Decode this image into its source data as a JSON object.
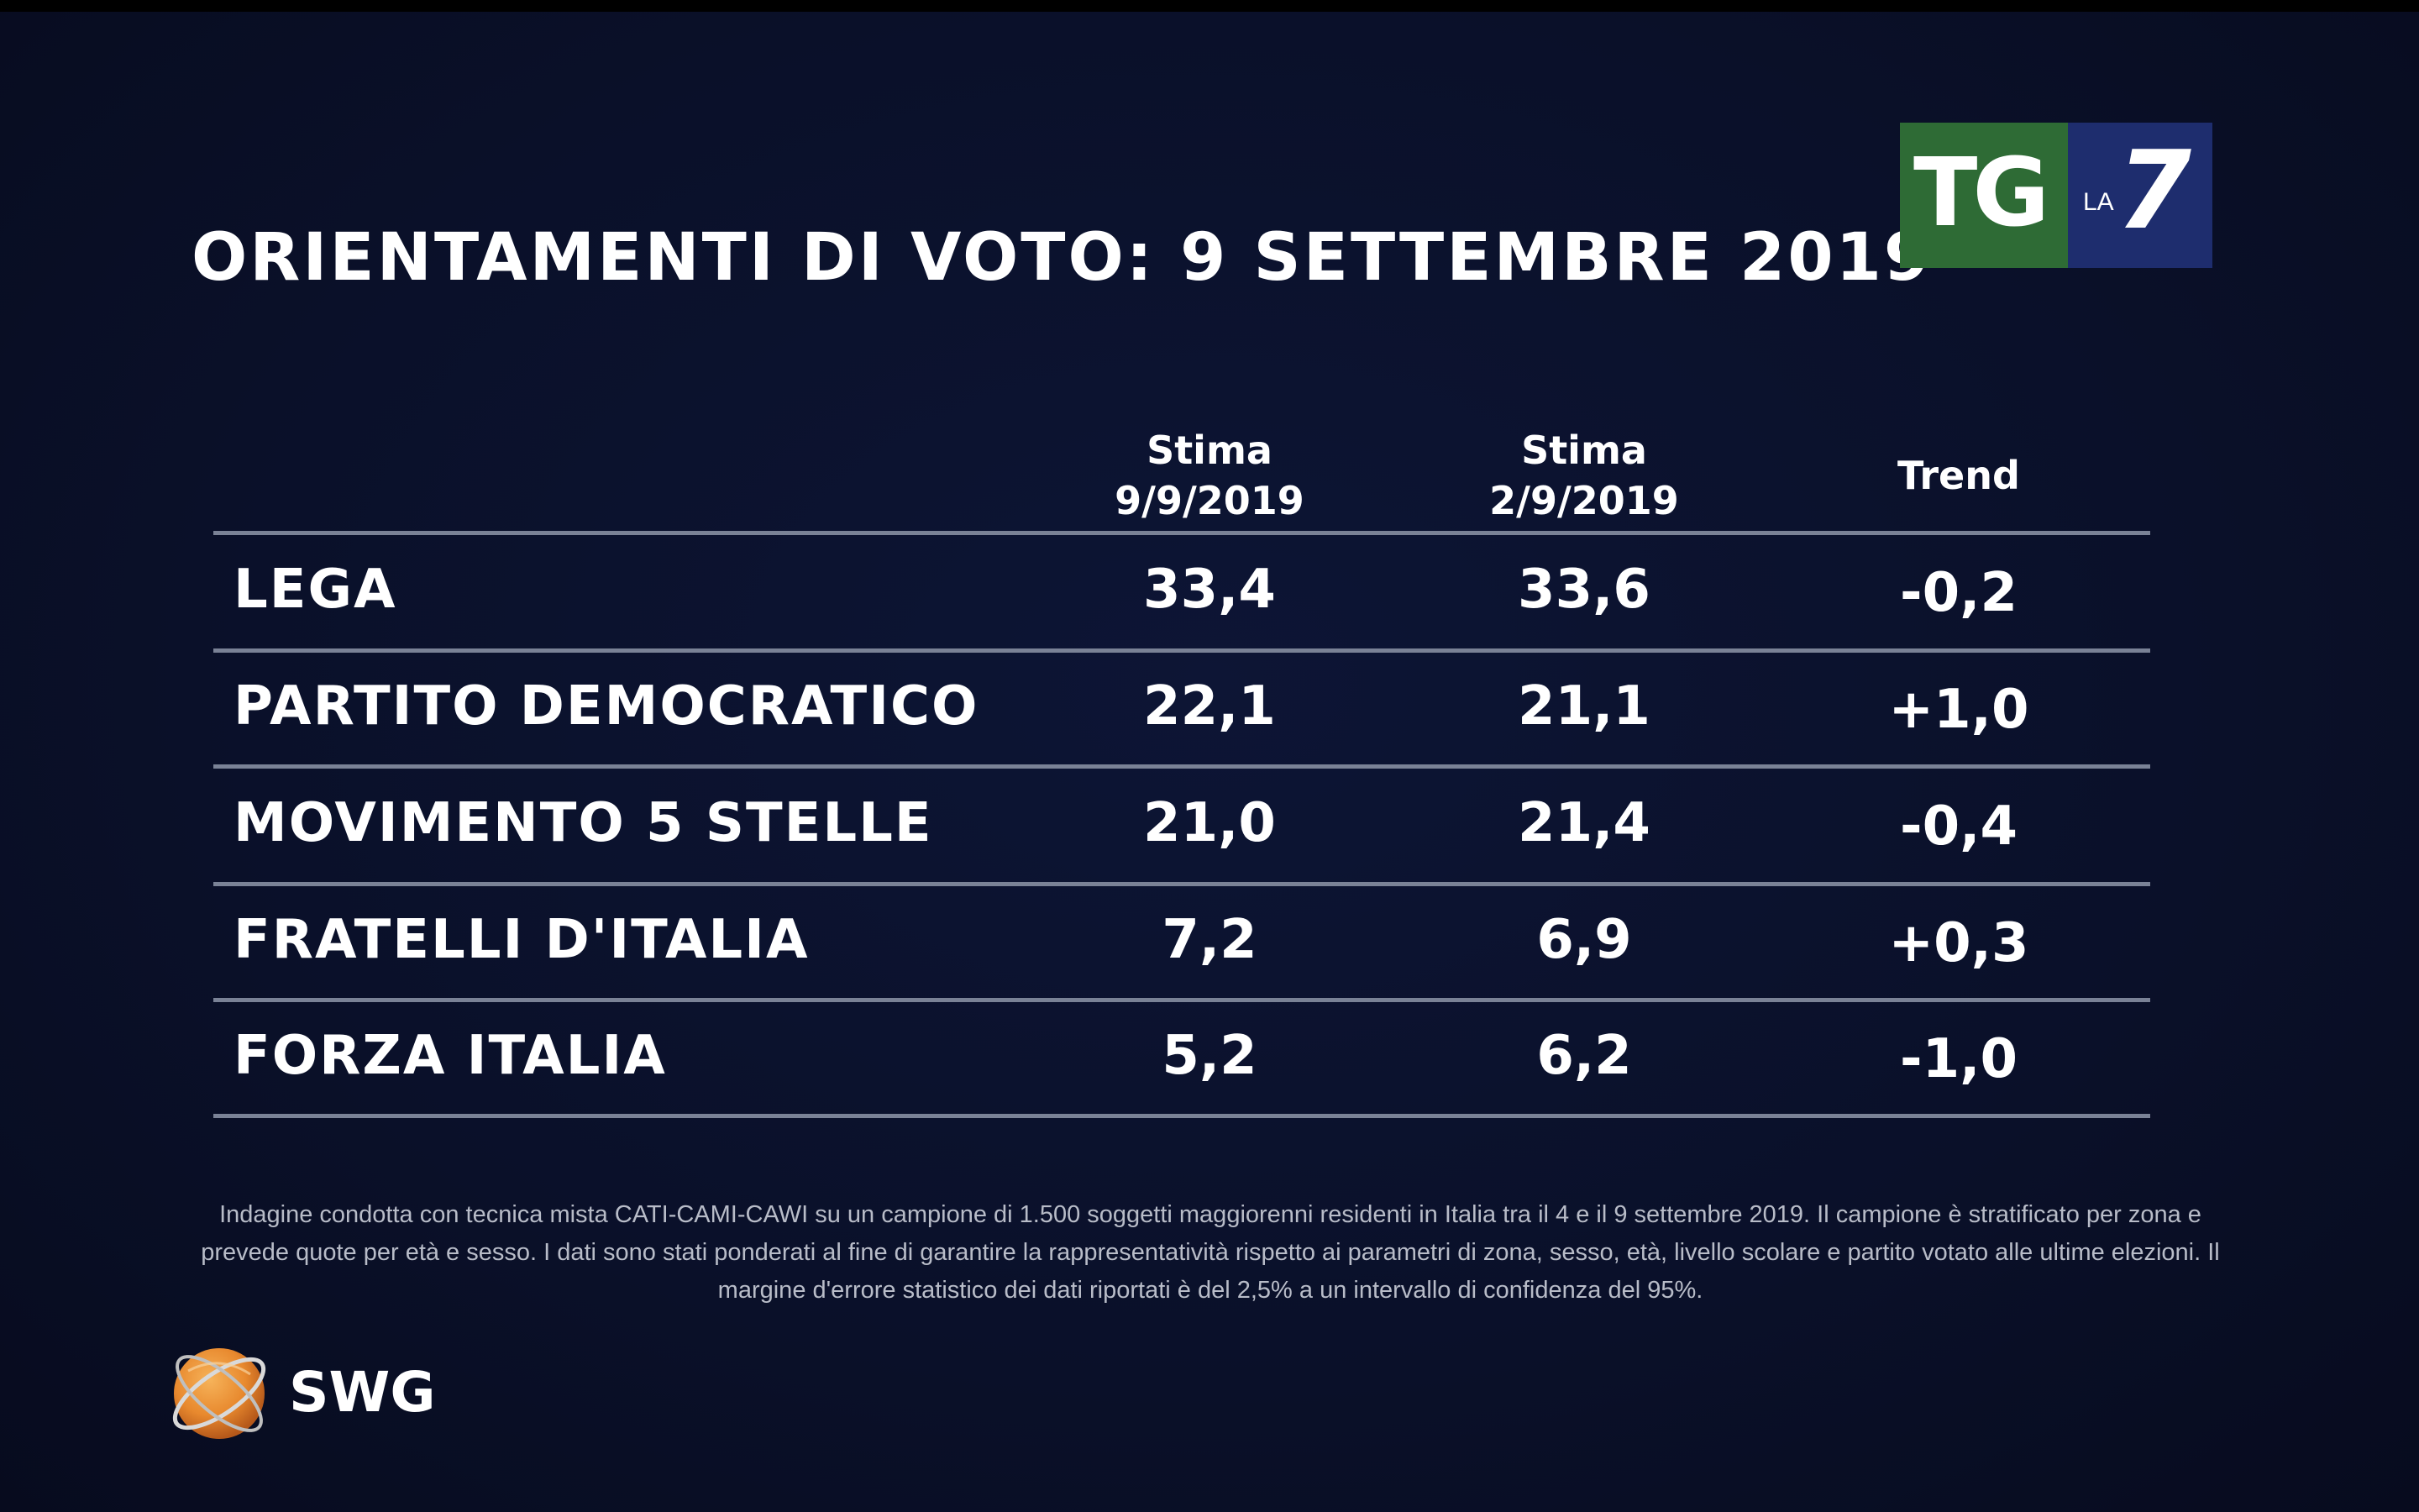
{
  "title": "ORIENTAMENTI DI VOTO: 9 SETTEMBRE 2019",
  "broadcaster_logo": {
    "tg": "TG",
    "la": "LA",
    "seven": "7"
  },
  "chart_data": {
    "type": "table",
    "columns": [
      {
        "line1": "Stima",
        "line2": "9/9/2019"
      },
      {
        "line1": "Stima",
        "line2": "2/9/2019"
      },
      {
        "line1": "Trend",
        "line2": ""
      }
    ],
    "rows": [
      {
        "party": "LEGA",
        "est_current": "33,4",
        "est_previous": "33,6",
        "trend": "-0,2"
      },
      {
        "party": "PARTITO DEMOCRATICO",
        "est_current": "22,1",
        "est_previous": "21,1",
        "trend": "+1,0"
      },
      {
        "party": "MOVIMENTO 5 STELLE",
        "est_current": "21,0",
        "est_previous": "21,4",
        "trend": "-0,4"
      },
      {
        "party": "FRATELLI D'ITALIA",
        "est_current": "7,2",
        "est_previous": "6,9",
        "trend": "+0,3"
      },
      {
        "party": "FORZA ITALIA",
        "est_current": "5,2",
        "est_previous": "6,2",
        "trend": "-1,0"
      }
    ]
  },
  "footnote": "Indagine condotta con tecnica mista CATI-CAMI-CAWI su un campione di 1.500 soggetti maggiorenni residenti in Italia tra il 4 e il 9 settembre 2019. Il campione è stratificato per zona e prevede quote per età e sesso. I dati sono stati ponderati al fine di garantire la rappresentatività rispetto ai parametri di zona, sesso, età, livello scolare e partito votato alle ultime elezioni. Il margine d'errore statistico dei dati riportati è del 2,5% a un intervallo di confidenza del 95%.",
  "source_logo": {
    "text": "SWG",
    "icon": "swg-globe-icon"
  },
  "colors": {
    "background": "#0a1029",
    "text": "#ffffff",
    "rule": "#7a8296",
    "logo_green": "#2e6b35",
    "logo_blue": "#1e2d6e",
    "globe_orange": "#e8892e"
  }
}
